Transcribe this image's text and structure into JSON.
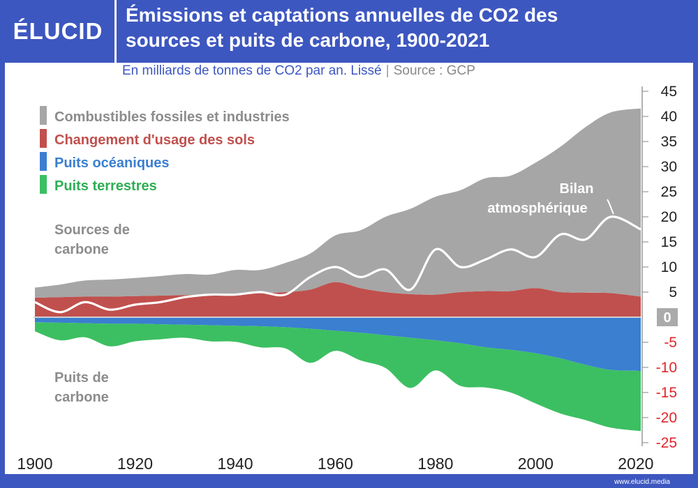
{
  "header": {
    "logo": "ÉLUCID",
    "title_line1": "Émissions et captations annuelles de CO2 des",
    "title_line2": "sources et puits de carbone, 1900-2021",
    "subtitle": "En milliards de tonnes de CO2 par an. Lissé",
    "subtitle_sep": "|",
    "source": "Source : GCP"
  },
  "footer": {
    "url": "www.elucid.media"
  },
  "colors": {
    "brand": "#3d57c0",
    "fossil": "#a6a6a6",
    "land_use": "#c0504d",
    "ocean": "#3a7fd0",
    "land_sink": "#3cbf62",
    "atmos": "#ffffff",
    "neg_tick": "#e0262b"
  },
  "chart_data": {
    "type": "area",
    "title": "Émissions et captations annuelles de CO2 des sources et puits de carbone, 1900-2021",
    "xlabel": "",
    "ylabel": "",
    "xlim": [
      1900,
      2021
    ],
    "ylim": [
      -25,
      45
    ],
    "xticks": [
      "1900",
      "1920",
      "1940",
      "1960",
      "1980",
      "2000",
      "2020"
    ],
    "yticks": [
      "45",
      "40",
      "35",
      "30",
      "25",
      "20",
      "15",
      "10",
      "5",
      "0",
      "-5",
      "-10",
      "-15",
      "-20",
      "-25"
    ],
    "legend": [
      "Combustibles fossiles et industries",
      "Changement d'usage des sols",
      "Puits océaniques",
      "Puits terrestres"
    ],
    "legend_position": "top-left",
    "annotations": {
      "sources": [
        "Sources de",
        "carbone"
      ],
      "sinks": [
        "Puits de",
        "carbone"
      ],
      "atmos": [
        "Bilan",
        "atmosphérique"
      ]
    },
    "x": [
      1900,
      1905,
      1910,
      1915,
      1920,
      1925,
      1930,
      1935,
      1940,
      1945,
      1950,
      1955,
      1960,
      1965,
      1970,
      1975,
      1980,
      1985,
      1990,
      1995,
      2000,
      2005,
      2010,
      2015,
      2021
    ],
    "series": [
      {
        "name": "Combustibles fossiles et industries",
        "stack": "positive",
        "values": [
          2.0,
          2.5,
          3.2,
          3.4,
          3.6,
          3.9,
          4.2,
          4.0,
          4.8,
          4.6,
          5.8,
          7.2,
          9.3,
          11.5,
          15.0,
          17.0,
          19.5,
          20.3,
          22.5,
          23.0,
          25.0,
          29.0,
          33.0,
          36.0,
          37.5
        ]
      },
      {
        "name": "Changement d'usage des sols",
        "stack": "positive",
        "values": [
          3.9,
          4.0,
          4.1,
          4.1,
          4.2,
          4.3,
          4.4,
          4.5,
          4.6,
          4.8,
          5.0,
          5.5,
          7.0,
          5.8,
          5.0,
          4.6,
          4.5,
          5.0,
          5.2,
          5.2,
          5.8,
          5.0,
          4.9,
          4.8,
          4.1
        ]
      },
      {
        "name": "Puits océaniques",
        "stack": "negative",
        "values": [
          -1.0,
          -1.1,
          -1.2,
          -1.3,
          -1.3,
          -1.4,
          -1.5,
          -1.6,
          -1.7,
          -1.8,
          -2.0,
          -2.3,
          -2.7,
          -3.1,
          -3.6,
          -4.1,
          -4.6,
          -5.2,
          -6.0,
          -6.5,
          -7.2,
          -8.2,
          -9.5,
          -10.5,
          -10.7
        ]
      },
      {
        "name": "Puits terrestres",
        "stack": "negative",
        "values": [
          -1.8,
          -3.5,
          -2.8,
          -4.5,
          -3.5,
          -3.0,
          -2.6,
          -3.2,
          -3.2,
          -4.2,
          -4.2,
          -6.8,
          -4.0,
          -5.5,
          -6.5,
          -10.0,
          -6.0,
          -8.5,
          -8.0,
          -8.5,
          -10.0,
          -11.0,
          -11.0,
          -11.5,
          -12.0
        ]
      },
      {
        "name": "Bilan atmosphérique",
        "type": "line",
        "values": [
          3.0,
          1.0,
          3.0,
          1.5,
          2.5,
          3.0,
          4.0,
          4.5,
          4.5,
          5.0,
          4.5,
          8.0,
          10.0,
          8.0,
          9.5,
          5.5,
          13.5,
          10.0,
          11.5,
          13.5,
          12.0,
          16.5,
          15.5,
          20.0,
          17.5
        ]
      }
    ]
  }
}
